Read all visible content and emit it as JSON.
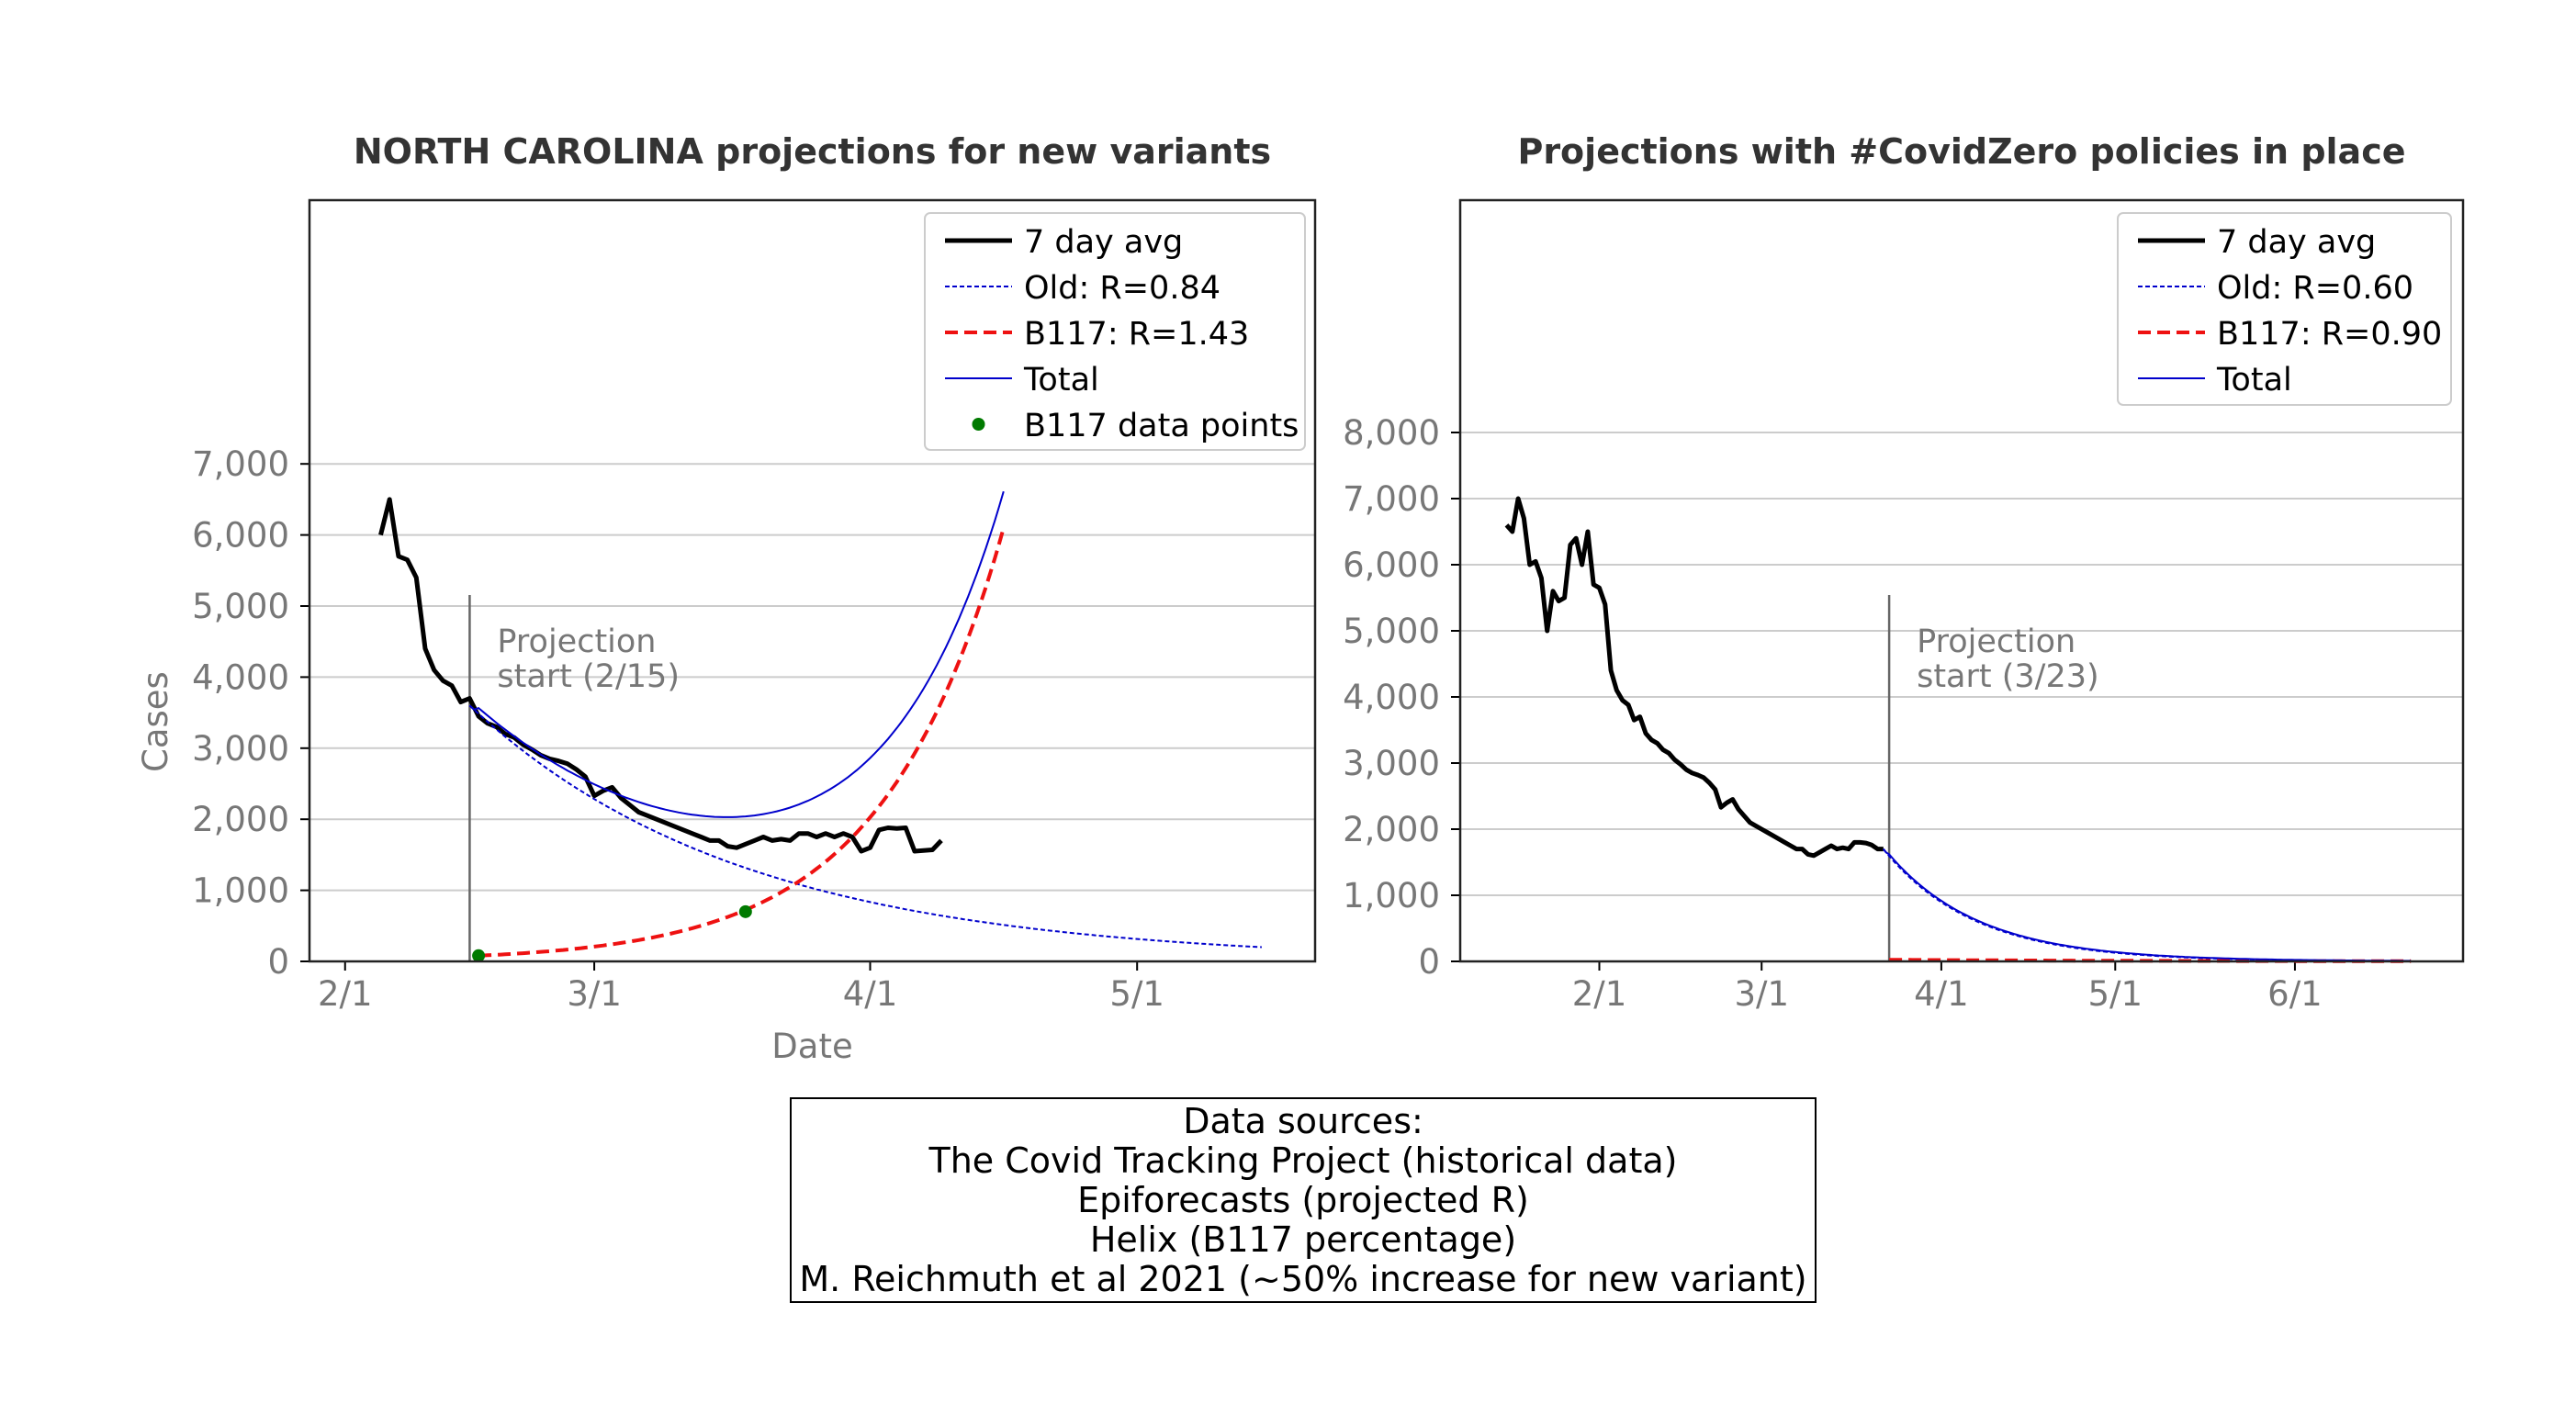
{
  "chart_data": [
    {
      "type": "line",
      "title": "NORTH CAROLINA projections for new variants",
      "xlabel": "Date",
      "ylabel": "Cases",
      "ylim": [
        0,
        7000
      ],
      "yticks": [
        0,
        1000,
        2000,
        3000,
        4000,
        5000,
        6000,
        7000
      ],
      "ytick_labels": [
        "0",
        "1,000",
        "2,000",
        "3,000",
        "4,000",
        "5,000",
        "6,000",
        "7,000"
      ],
      "xticks": [
        "2021-02-01",
        "2021-03-01",
        "2021-04-01",
        "2021-05-01"
      ],
      "xtick_labels": [
        "2/1",
        "3/1",
        "4/1",
        "5/1"
      ],
      "grid": "horizontal",
      "legend_position": "top-right",
      "projection_start_date": "2021-02-15",
      "annotation": [
        "Projection",
        "start (2/15)"
      ],
      "series": [
        {
          "name": "7 day avg",
          "style": "solid-thick",
          "color": "#000000",
          "points": [
            [
              "2021-02-05",
              6000
            ],
            [
              "2021-02-06",
              6500
            ],
            [
              "2021-02-07",
              5700
            ],
            [
              "2021-02-08",
              5650
            ],
            [
              "2021-02-09",
              5400
            ],
            [
              "2021-02-10",
              4400
            ],
            [
              "2021-02-11",
              4100
            ],
            [
              "2021-02-12",
              3950
            ],
            [
              "2021-02-13",
              3880
            ],
            [
              "2021-02-14",
              3650
            ],
            [
              "2021-02-15",
              3700
            ],
            [
              "2021-02-16",
              3450
            ],
            [
              "2021-02-17",
              3350
            ],
            [
              "2021-02-18",
              3300
            ],
            [
              "2021-02-19",
              3200
            ],
            [
              "2021-02-20",
              3150
            ],
            [
              "2021-02-21",
              3050
            ],
            [
              "2021-02-22",
              2980
            ],
            [
              "2021-02-23",
              2900
            ],
            [
              "2021-02-24",
              2850
            ],
            [
              "2021-02-25",
              2820
            ],
            [
              "2021-02-26",
              2780
            ],
            [
              "2021-02-27",
              2700
            ],
            [
              "2021-02-28",
              2600
            ],
            [
              "2021-03-01",
              2330
            ],
            [
              "2021-03-02",
              2400
            ],
            [
              "2021-03-03",
              2450
            ],
            [
              "2021-03-04",
              2300
            ],
            [
              "2021-03-05",
              2200
            ],
            [
              "2021-03-06",
              2100
            ],
            [
              "2021-03-07",
              2050
            ],
            [
              "2021-03-08",
              2000
            ],
            [
              "2021-03-09",
              1950
            ],
            [
              "2021-03-10",
              1900
            ],
            [
              "2021-03-11",
              1850
            ],
            [
              "2021-03-12",
              1800
            ],
            [
              "2021-03-13",
              1750
            ],
            [
              "2021-03-14",
              1700
            ],
            [
              "2021-03-15",
              1700
            ],
            [
              "2021-03-16",
              1620
            ],
            [
              "2021-03-17",
              1600
            ],
            [
              "2021-03-18",
              1650
            ],
            [
              "2021-03-19",
              1700
            ],
            [
              "2021-03-20",
              1750
            ],
            [
              "2021-03-21",
              1700
            ],
            [
              "2021-03-22",
              1720
            ],
            [
              "2021-03-23",
              1700
            ],
            [
              "2021-03-24",
              1800
            ],
            [
              "2021-03-25",
              1800
            ],
            [
              "2021-03-26",
              1750
            ],
            [
              "2021-03-27",
              1800
            ],
            [
              "2021-03-28",
              1750
            ],
            [
              "2021-03-29",
              1800
            ],
            [
              "2021-03-30",
              1750
            ],
            [
              "2021-03-31",
              1550
            ],
            [
              "2021-04-01",
              1600
            ],
            [
              "2021-04-02",
              1850
            ],
            [
              "2021-04-03",
              1880
            ],
            [
              "2021-04-04",
              1870
            ],
            [
              "2021-04-05",
              1880
            ],
            [
              "2021-04-06",
              1550
            ],
            [
              "2021-04-07",
              1560
            ],
            [
              "2021-04-08",
              1570
            ],
            [
              "2021-04-09",
              1700
            ]
          ]
        },
        {
          "name": "Old: R=0.84",
          "style": "dotted",
          "color": "#0000cc",
          "model": "decay",
          "start": [
            "2021-02-15",
            3600
          ],
          "end": [
            "2021-05-15",
            200
          ]
        },
        {
          "name": "B117: R=1.43",
          "style": "dashed",
          "color": "#ee1111",
          "model": "growth",
          "start": [
            "2021-02-16",
            80
          ],
          "end": [
            "2021-04-16",
            6100
          ]
        },
        {
          "name": "Total",
          "style": "solid-thin",
          "color": "#0000cc",
          "model": "sum"
        },
        {
          "name": "B117 data points",
          "style": "marker",
          "color": "#007a00",
          "points": [
            [
              "2021-02-16",
              80
            ],
            [
              "2021-03-18",
              700
            ]
          ]
        }
      ]
    },
    {
      "type": "line",
      "title": "Projections with #CovidZero policies in place",
      "xlabel": "",
      "ylabel": "",
      "ylim": [
        0,
        8000
      ],
      "yticks": [
        0,
        1000,
        2000,
        3000,
        4000,
        5000,
        6000,
        7000,
        8000
      ],
      "ytick_labels": [
        "0",
        "1,000",
        "2,000",
        "3,000",
        "4,000",
        "5,000",
        "6,000",
        "7,000",
        "8,000"
      ],
      "xticks": [
        "2021-02-01",
        "2021-03-01",
        "2021-04-01",
        "2021-05-01",
        "2021-06-01"
      ],
      "xtick_labels": [
        "2/1",
        "3/1",
        "4/1",
        "5/1",
        "6/1"
      ],
      "grid": "horizontal",
      "legend_position": "top-right",
      "projection_start_date": "2021-03-23",
      "annotation": [
        "Projection",
        "start (3/23)"
      ],
      "series": [
        {
          "name": "7 day avg",
          "style": "solid-thick",
          "color": "#000000",
          "points": [
            [
              "2021-01-16",
              6600
            ],
            [
              "2021-01-17",
              6500
            ],
            [
              "2021-01-18",
              7000
            ],
            [
              "2021-01-19",
              6700
            ],
            [
              "2021-01-20",
              6000
            ],
            [
              "2021-01-21",
              6050
            ],
            [
              "2021-01-22",
              5800
            ],
            [
              "2021-01-23",
              5000
            ],
            [
              "2021-01-24",
              5600
            ],
            [
              "2021-01-25",
              5450
            ],
            [
              "2021-01-26",
              5500
            ],
            [
              "2021-01-27",
              6300
            ],
            [
              "2021-01-28",
              6400
            ],
            [
              "2021-01-29",
              6000
            ],
            [
              "2021-01-30",
              6500
            ],
            [
              "2021-01-31",
              5700
            ],
            [
              "2021-02-01",
              5650
            ],
            [
              "2021-02-02",
              5400
            ],
            [
              "2021-02-03",
              4400
            ],
            [
              "2021-02-04",
              4100
            ],
            [
              "2021-02-05",
              3950
            ],
            [
              "2021-02-06",
              3880
            ],
            [
              "2021-02-07",
              3650
            ],
            [
              "2021-02-08",
              3700
            ],
            [
              "2021-02-09",
              3450
            ],
            [
              "2021-02-10",
              3350
            ],
            [
              "2021-02-11",
              3300
            ],
            [
              "2021-02-12",
              3200
            ],
            [
              "2021-02-13",
              3150
            ],
            [
              "2021-02-14",
              3050
            ],
            [
              "2021-02-15",
              2980
            ],
            [
              "2021-02-16",
              2900
            ],
            [
              "2021-02-17",
              2850
            ],
            [
              "2021-02-18",
              2820
            ],
            [
              "2021-02-19",
              2780
            ],
            [
              "2021-02-20",
              2700
            ],
            [
              "2021-02-21",
              2600
            ],
            [
              "2021-02-22",
              2330
            ],
            [
              "2021-02-23",
              2400
            ],
            [
              "2021-02-24",
              2450
            ],
            [
              "2021-02-25",
              2300
            ],
            [
              "2021-02-26",
              2200
            ],
            [
              "2021-02-27",
              2100
            ],
            [
              "2021-02-28",
              2050
            ],
            [
              "2021-03-01",
              2000
            ],
            [
              "2021-03-02",
              1950
            ],
            [
              "2021-03-03",
              1900
            ],
            [
              "2021-03-04",
              1850
            ],
            [
              "2021-03-05",
              1800
            ],
            [
              "2021-03-06",
              1750
            ],
            [
              "2021-03-07",
              1700
            ],
            [
              "2021-03-08",
              1700
            ],
            [
              "2021-03-09",
              1620
            ],
            [
              "2021-03-10",
              1600
            ],
            [
              "2021-03-11",
              1650
            ],
            [
              "2021-03-12",
              1700
            ],
            [
              "2021-03-13",
              1750
            ],
            [
              "2021-03-14",
              1700
            ],
            [
              "2021-03-15",
              1720
            ],
            [
              "2021-03-16",
              1700
            ],
            [
              "2021-03-17",
              1800
            ],
            [
              "2021-03-18",
              1800
            ],
            [
              "2021-03-19",
              1790
            ],
            [
              "2021-03-20",
              1760
            ],
            [
              "2021-03-21",
              1700
            ],
            [
              "2021-03-22",
              1700
            ]
          ]
        },
        {
          "name": "Old: R=0.60",
          "style": "dotted",
          "color": "#0000cc",
          "model": "decay",
          "start": [
            "2021-03-22",
            1700
          ],
          "end": [
            "2021-06-21",
            5
          ]
        },
        {
          "name": "B117: R=0.90",
          "style": "dashed",
          "color": "#ee1111",
          "model": "decay",
          "start": [
            "2021-03-23",
            25
          ],
          "end": [
            "2021-06-21",
            3
          ]
        },
        {
          "name": "Total",
          "style": "solid-thin",
          "color": "#0000cc",
          "model": "sum"
        }
      ]
    }
  ],
  "sources": {
    "lines": [
      "Data sources:",
      "The Covid Tracking Project (historical data)",
      "Epiforecasts (projected R)",
      "Helix (B117 percentage)",
      "M. Reichmuth et al 2021 (~50% increase for new variant)"
    ]
  }
}
